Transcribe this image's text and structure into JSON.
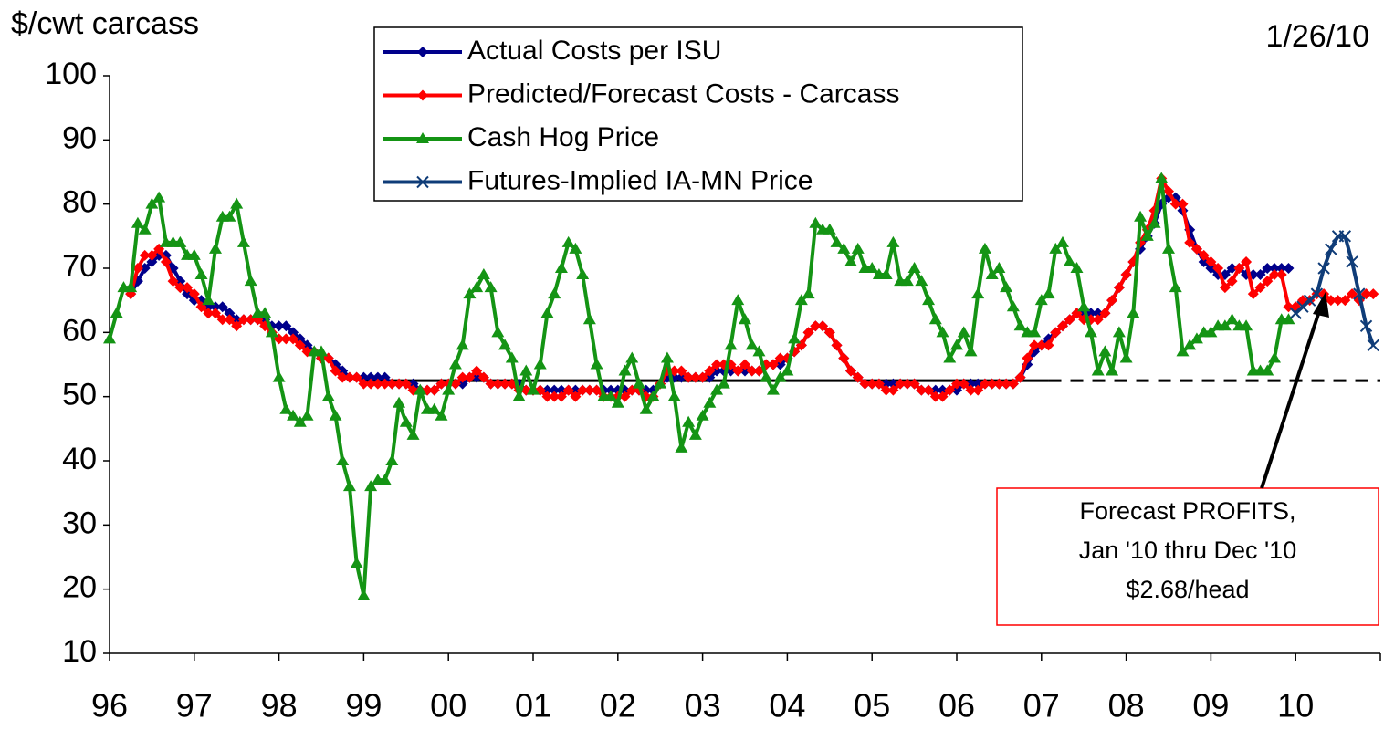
{
  "chart_data": {
    "type": "line",
    "y_label": "$/cwt carcass",
    "date": "1/26/10",
    "annotation": [
      "Forecast PROFITS,",
      "Jan '10 thru Dec '10",
      "$2.68/head"
    ],
    "xlim": [
      0,
      180
    ],
    "xticks": [
      {
        "value": 0,
        "label": "96"
      },
      {
        "value": 12,
        "label": "97"
      },
      {
        "value": 24,
        "label": "98"
      },
      {
        "value": 36,
        "label": "99"
      },
      {
        "value": 48,
        "label": "00"
      },
      {
        "value": 60,
        "label": "01"
      },
      {
        "value": 72,
        "label": "02"
      },
      {
        "value": 84,
        "label": "03"
      },
      {
        "value": 96,
        "label": "04"
      },
      {
        "value": 108,
        "label": "05"
      },
      {
        "value": 120,
        "label": "06"
      },
      {
        "value": 132,
        "label": "07"
      },
      {
        "value": 144,
        "label": "08"
      },
      {
        "value": 156,
        "label": "09"
      },
      {
        "value": 168,
        "label": "10"
      }
    ],
    "ylim": [
      10,
      100
    ],
    "yticks": [
      10,
      20,
      30,
      40,
      50,
      60,
      70,
      80,
      90,
      100
    ],
    "reference_lines": [
      {
        "value": 52.5,
        "x": [
          36,
          133
        ],
        "style": "solid",
        "color": "#000000"
      },
      {
        "value": 52.5,
        "x": [
          133,
          180
        ],
        "style": "dashed",
        "color": "#000000"
      }
    ],
    "x": [
      0,
      1,
      2,
      3,
      4,
      5,
      6,
      7,
      8,
      9,
      10,
      11,
      12,
      13,
      14,
      15,
      16,
      17,
      18,
      19,
      20,
      21,
      22,
      23,
      24,
      25,
      26,
      27,
      28,
      29,
      30,
      31,
      32,
      33,
      34,
      35,
      36,
      37,
      38,
      39,
      40,
      41,
      42,
      43,
      44,
      45,
      46,
      47,
      48,
      49,
      50,
      51,
      52,
      53,
      54,
      55,
      56,
      57,
      58,
      59,
      60,
      61,
      62,
      63,
      64,
      65,
      66,
      67,
      68,
      69,
      70,
      71,
      72,
      73,
      74,
      75,
      76,
      77,
      78,
      79,
      80,
      81,
      82,
      83,
      84,
      85,
      86,
      87,
      88,
      89,
      90,
      91,
      92,
      93,
      94,
      95,
      96,
      97,
      98,
      99,
      100,
      101,
      102,
      103,
      104,
      105,
      106,
      107,
      108,
      109,
      110,
      111,
      112,
      113,
      114,
      115,
      116,
      117,
      118,
      119,
      120,
      121,
      122,
      123,
      124,
      125,
      126,
      127,
      128,
      129,
      130,
      131,
      132,
      133,
      134,
      135,
      136,
      137,
      138,
      139,
      140,
      141,
      142,
      143,
      144,
      145,
      146,
      147,
      148,
      149,
      150,
      151,
      152,
      153,
      154,
      155,
      156,
      157,
      158,
      159,
      160,
      161,
      162,
      163,
      164,
      165,
      166,
      167,
      168,
      169,
      170,
      171,
      172,
      173,
      174,
      175,
      176,
      177,
      178,
      179
    ],
    "series": [
      {
        "name": "Actual Costs per ISU",
        "color": "#00008b",
        "marker": "diamond",
        "values": [
          null,
          null,
          null,
          66,
          68,
          70,
          71,
          72,
          72,
          70,
          68,
          66,
          65,
          65,
          64,
          64,
          64,
          63,
          62,
          62,
          62,
          62,
          62,
          61,
          61,
          61,
          60,
          59,
          58,
          57,
          56,
          56,
          55,
          54,
          53,
          53,
          53,
          53,
          53,
          53,
          52,
          52,
          52,
          52,
          51,
          51,
          51,
          52,
          52,
          52,
          52,
          53,
          53,
          53,
          52,
          52,
          52,
          52,
          52,
          51,
          51,
          51,
          51,
          51,
          51,
          51,
          51,
          51,
          51,
          51,
          51,
          51,
          51,
          51,
          51,
          51,
          51,
          51,
          52,
          53,
          53,
          53,
          53,
          53,
          53,
          53,
          54,
          54,
          54,
          54,
          54,
          54,
          54,
          55,
          55,
          55,
          56,
          57,
          58,
          60,
          61,
          61,
          60,
          58,
          56,
          54,
          53,
          52,
          52,
          52,
          52,
          52,
          52,
          52,
          52,
          51,
          51,
          51,
          51,
          51,
          51,
          52,
          52,
          52,
          52,
          52,
          52,
          52,
          52,
          53,
          55,
          57,
          58,
          59,
          60,
          61,
          62,
          63,
          63,
          63,
          63,
          63,
          65,
          67,
          69,
          71,
          73,
          75,
          77,
          80,
          81,
          81,
          79,
          76,
          73,
          71,
          70,
          69,
          69,
          70,
          70,
          69,
          69,
          69,
          70,
          70,
          70,
          70,
          null,
          null,
          null,
          null,
          null,
          null,
          null,
          null,
          null,
          null,
          null,
          null
        ]
      },
      {
        "name": "Predicted/Forecast Costs - Carcass",
        "color": "#ff0000",
        "marker": "diamond",
        "values": [
          null,
          null,
          null,
          66,
          70,
          72,
          72,
          73,
          71,
          68,
          67,
          67,
          66,
          64,
          63,
          63,
          62,
          62,
          61,
          62,
          62,
          62,
          61,
          60,
          59,
          59,
          59,
          58,
          57,
          57,
          56,
          56,
          54,
          53,
          53,
          53,
          52,
          52,
          52,
          52,
          52,
          52,
          52,
          51,
          51,
          51,
          51,
          52,
          52,
          52,
          53,
          53,
          54,
          53,
          52,
          52,
          52,
          52,
          51,
          51,
          51,
          51,
          50,
          50,
          50,
          51,
          50,
          51,
          51,
          51,
          50,
          50,
          50,
          50,
          51,
          51,
          50,
          50,
          52,
          54,
          54,
          54,
          53,
          53,
          53,
          54,
          55,
          55,
          55,
          54,
          55,
          54,
          54,
          55,
          55,
          56,
          56,
          57,
          58,
          60,
          61,
          61,
          60,
          58,
          56,
          54,
          53,
          52,
          52,
          52,
          51,
          51,
          52,
          52,
          52,
          51,
          51,
          50,
          50,
          51,
          52,
          52,
          51,
          51,
          52,
          52,
          52,
          52,
          52,
          53,
          56,
          58,
          58,
          58,
          60,
          61,
          62,
          63,
          62,
          62,
          62,
          63,
          65,
          67,
          69,
          71,
          74,
          76,
          79,
          84,
          82,
          80,
          80,
          74,
          73,
          72,
          71,
          70,
          67,
          68,
          70,
          71,
          66,
          67,
          68,
          69,
          69,
          64,
          64,
          65,
          65,
          66,
          66,
          65,
          65,
          65,
          66,
          65,
          66,
          66
        ]
      },
      {
        "name": "Cash Hog Price",
        "color": "#149414",
        "marker": "triangle",
        "values": [
          59,
          63,
          67,
          67,
          77,
          76,
          80,
          81,
          74,
          74,
          74,
          72,
          72,
          69,
          65,
          73,
          78,
          78,
          80,
          74,
          68,
          63,
          63,
          60,
          53,
          48,
          47,
          46,
          47,
          57,
          57,
          50,
          47,
          40,
          36,
          24,
          19,
          36,
          37,
          37,
          40,
          49,
          46,
          44,
          51,
          48,
          48,
          47,
          51,
          55,
          58,
          66,
          67,
          69,
          67,
          60,
          58,
          56,
          50,
          54,
          51,
          55,
          63,
          66,
          70,
          74,
          73,
          69,
          62,
          55,
          50,
          50,
          49,
          54,
          56,
          52,
          48,
          50,
          52,
          56,
          50,
          42,
          46,
          44,
          47,
          49,
          51,
          52,
          58,
          65,
          62,
          58,
          57,
          53,
          51,
          53,
          54,
          59,
          65,
          66,
          77,
          76,
          76,
          74,
          73,
          71,
          73,
          70,
          70,
          69,
          69,
          74,
          68,
          68,
          70,
          68,
          65,
          62,
          60,
          56,
          58,
          60,
          57,
          66,
          73,
          69,
          70,
          67,
          64,
          61,
          60,
          60,
          65,
          66,
          73,
          74,
          71,
          70,
          64,
          60,
          54,
          57,
          54,
          60,
          56,
          63,
          78,
          75,
          77,
          84,
          73,
          67,
          57,
          58,
          59,
          60,
          60,
          61,
          61,
          62,
          61,
          61,
          54,
          54,
          54,
          56,
          62,
          62,
          null,
          null,
          null,
          null,
          null,
          null,
          null,
          null,
          null,
          null,
          null,
          null
        ]
      },
      {
        "name": "Futures-Implied IA-MN Price",
        "color": "#0f3c78",
        "marker": "x",
        "values": [
          null,
          null,
          null,
          null,
          null,
          null,
          null,
          null,
          null,
          null,
          null,
          null,
          null,
          null,
          null,
          null,
          null,
          null,
          null,
          null,
          null,
          null,
          null,
          null,
          null,
          null,
          null,
          null,
          null,
          null,
          null,
          null,
          null,
          null,
          null,
          null,
          null,
          null,
          null,
          null,
          null,
          null,
          null,
          null,
          null,
          null,
          null,
          null,
          null,
          null,
          null,
          null,
          null,
          null,
          null,
          null,
          null,
          null,
          null,
          null,
          null,
          null,
          null,
          null,
          null,
          null,
          null,
          null,
          null,
          null,
          null,
          null,
          null,
          null,
          null,
          null,
          null,
          null,
          null,
          null,
          null,
          null,
          null,
          null,
          null,
          null,
          null,
          null,
          null,
          null,
          null,
          null,
          null,
          null,
          null,
          null,
          null,
          null,
          null,
          null,
          null,
          null,
          null,
          null,
          null,
          null,
          null,
          null,
          null,
          null,
          null,
          null,
          null,
          null,
          null,
          null,
          null,
          null,
          null,
          null,
          null,
          null,
          null,
          null,
          null,
          null,
          null,
          null,
          null,
          null,
          null,
          null,
          null,
          null,
          null,
          null,
          null,
          null,
          null,
          null,
          null,
          null,
          null,
          null,
          null,
          null,
          null,
          null,
          null,
          null,
          null,
          null,
          null,
          null,
          null,
          null,
          null,
          null,
          null,
          null,
          null,
          null,
          null,
          null,
          null,
          null,
          null,
          null,
          63,
          64,
          65,
          66,
          70,
          73,
          75,
          75,
          71,
          66,
          61,
          58
        ]
      }
    ]
  }
}
